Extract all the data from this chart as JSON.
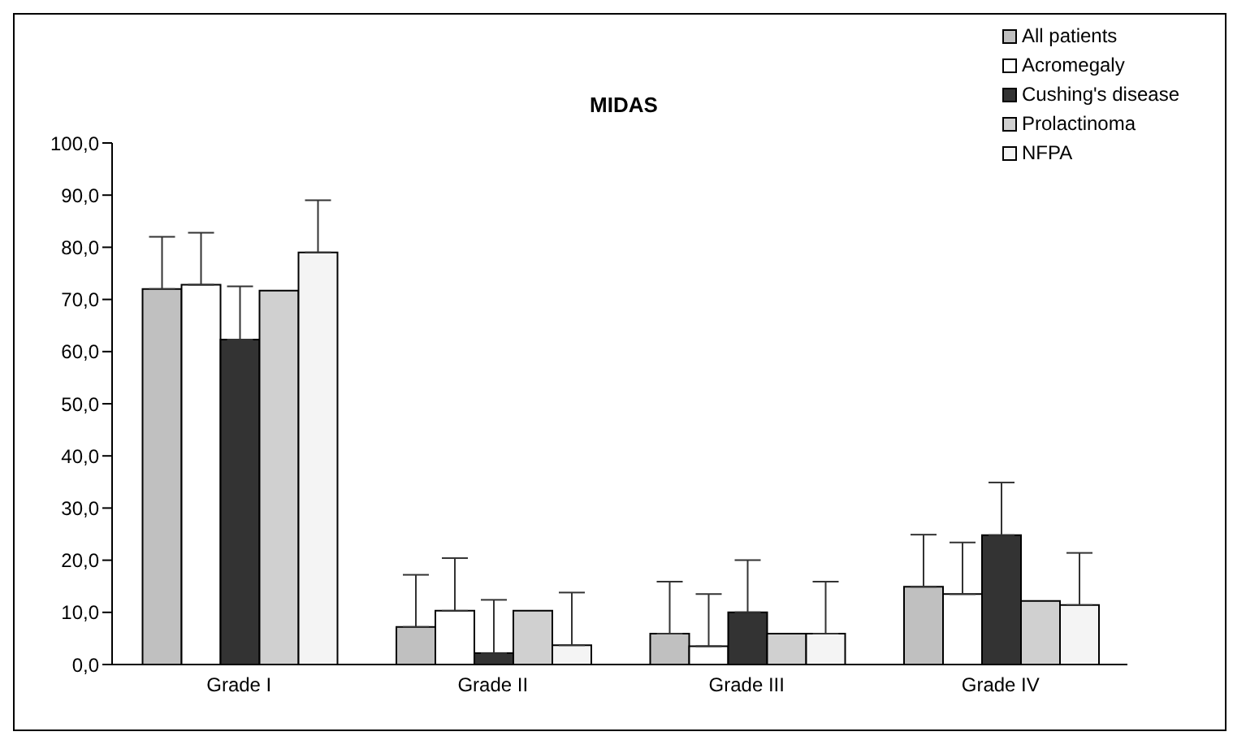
{
  "chart_data": {
    "type": "bar",
    "title": "MIDAS",
    "categories": [
      "Grade I",
      "Grade II",
      "Grade III",
      "Grade IV"
    ],
    "series": [
      {
        "name": "All patients",
        "color": "#c0c0c0",
        "values": [
          72.0,
          7.2,
          5.9,
          14.9
        ],
        "errors": [
          [
            72.0,
            82.0
          ],
          [
            7.2,
            17.2
          ],
          [
            5.9,
            15.9
          ],
          [
            14.9,
            24.9
          ]
        ]
      },
      {
        "name": "Acromegaly",
        "color": "#ffffff",
        "values": [
          72.8,
          10.3,
          3.5,
          13.5
        ],
        "errors": [
          [
            72.8,
            82.8
          ],
          [
            10.3,
            20.4
          ],
          [
            3.5,
            13.5
          ],
          [
            13.5,
            23.4
          ]
        ]
      },
      {
        "name": "Cushing's disease",
        "color": "#333333",
        "values": [
          62.3,
          2.2,
          10.0,
          24.8
        ],
        "errors": [
          [
            62.3,
            72.5
          ],
          [
            2.2,
            12.4
          ],
          [
            10.0,
            20.0
          ],
          [
            24.8,
            34.9
          ]
        ]
      },
      {
        "name": "Prolactinoma",
        "color": "#d0d0d0",
        "values": [
          71.7,
          10.3,
          5.9,
          12.2
        ]
      },
      {
        "name": "NFPA",
        "color": "#f4f4f4",
        "values": [
          79.0,
          3.7,
          5.9,
          11.4
        ],
        "errors": [
          [
            79.0,
            89.0
          ],
          [
            3.7,
            13.8
          ],
          [
            5.9,
            15.9
          ],
          [
            11.4,
            21.4
          ]
        ]
      }
    ],
    "ylim": [
      0,
      100
    ],
    "yticks": [
      {
        "value": 0,
        "label": "0,0"
      },
      {
        "value": 10,
        "label": "10,0"
      },
      {
        "value": 20,
        "label": "20,0"
      },
      {
        "value": 30,
        "label": "30,0"
      },
      {
        "value": 40,
        "label": "40,0"
      },
      {
        "value": 50,
        "label": "50,0"
      },
      {
        "value": 60,
        "label": "60,0"
      },
      {
        "value": 70,
        "label": "70,0"
      },
      {
        "value": 80,
        "label": "80,0"
      },
      {
        "value": 90,
        "label": "90,0"
      },
      {
        "value": 100,
        "label": "100,0"
      }
    ],
    "grid": false,
    "legend": "top right"
  }
}
